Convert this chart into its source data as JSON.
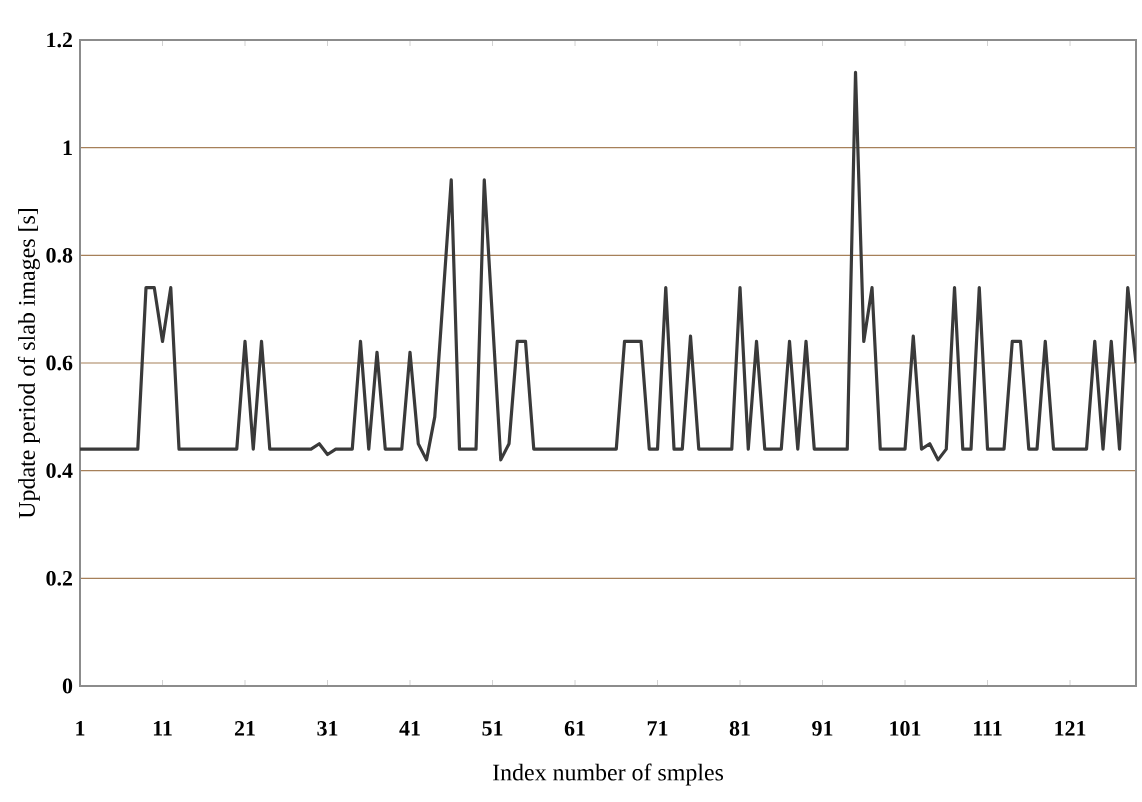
{
  "chart_data": {
    "type": "line",
    "xlabel": "Index number of smples",
    "ylabel": "Update period of  slab images [s]",
    "x": [
      1,
      2,
      3,
      4,
      5,
      6,
      7,
      8,
      9,
      10,
      11,
      12,
      13,
      14,
      15,
      16,
      17,
      18,
      19,
      20,
      21,
      22,
      23,
      24,
      25,
      26,
      27,
      28,
      29,
      30,
      31,
      32,
      33,
      34,
      35,
      36,
      37,
      38,
      39,
      40,
      41,
      42,
      43,
      44,
      45,
      46,
      47,
      48,
      49,
      50,
      51,
      52,
      53,
      54,
      55,
      56,
      57,
      58,
      59,
      60,
      61,
      62,
      63,
      64,
      65,
      66,
      67,
      68,
      69,
      70,
      71,
      72,
      73,
      74,
      75,
      76,
      77,
      78,
      79,
      80,
      81,
      82,
      83,
      84,
      85,
      86,
      87,
      88,
      89,
      90,
      91,
      92,
      93,
      94,
      95,
      96,
      97,
      98,
      99,
      100,
      101,
      102,
      103,
      104,
      105,
      106,
      107,
      108,
      109,
      110,
      111,
      112,
      113,
      114,
      115,
      116,
      117,
      118,
      119,
      120,
      121,
      122,
      123,
      124,
      125,
      126,
      127,
      128,
      129
    ],
    "series": [
      {
        "color": "#3a3a3a",
        "values": [
          0.44,
          0.44,
          0.44,
          0.44,
          0.44,
          0.44,
          0.44,
          0.44,
          0.74,
          0.74,
          0.64,
          0.74,
          0.44,
          0.44,
          0.44,
          0.44,
          0.44,
          0.44,
          0.44,
          0.44,
          0.64,
          0.44,
          0.64,
          0.44,
          0.44,
          0.44,
          0.44,
          0.44,
          0.44,
          0.45,
          0.43,
          0.44,
          0.44,
          0.44,
          0.64,
          0.44,
          0.62,
          0.44,
          0.44,
          0.44,
          0.62,
          0.45,
          0.42,
          0.5,
          0.72,
          0.94,
          0.44,
          0.44,
          0.44,
          0.94,
          0.68,
          0.42,
          0.45,
          0.64,
          0.64,
          0.44,
          0.44,
          0.44,
          0.44,
          0.44,
          0.44,
          0.44,
          0.44,
          0.44,
          0.44,
          0.44,
          0.64,
          0.64,
          0.64,
          0.44,
          0.44,
          0.74,
          0.44,
          0.44,
          0.65,
          0.44,
          0.44,
          0.44,
          0.44,
          0.44,
          0.74,
          0.44,
          0.64,
          0.44,
          0.44,
          0.44,
          0.64,
          0.44,
          0.64,
          0.44,
          0.44,
          0.44,
          0.44,
          0.44,
          1.14,
          0.64,
          0.74,
          0.44,
          0.44,
          0.44,
          0.44,
          0.65,
          0.44,
          0.45,
          0.42,
          0.44,
          0.74,
          0.44,
          0.44,
          0.74,
          0.44,
          0.44,
          0.44,
          0.64,
          0.64,
          0.44,
          0.44,
          0.64,
          0.44,
          0.44,
          0.44,
          0.44,
          0.44,
          0.64,
          0.44,
          0.64,
          0.44,
          0.74,
          0.6
        ]
      }
    ],
    "xlim": [
      1,
      129
    ],
    "ylim": [
      0,
      1.2
    ],
    "xticks": [
      1,
      11,
      21,
      31,
      41,
      51,
      61,
      71,
      81,
      91,
      101,
      111,
      121
    ],
    "yticks": [
      0,
      0.2,
      0.4,
      0.6,
      0.8,
      1,
      1.2
    ],
    "grid": "y",
    "marker": "none",
    "line_style": "solid"
  }
}
